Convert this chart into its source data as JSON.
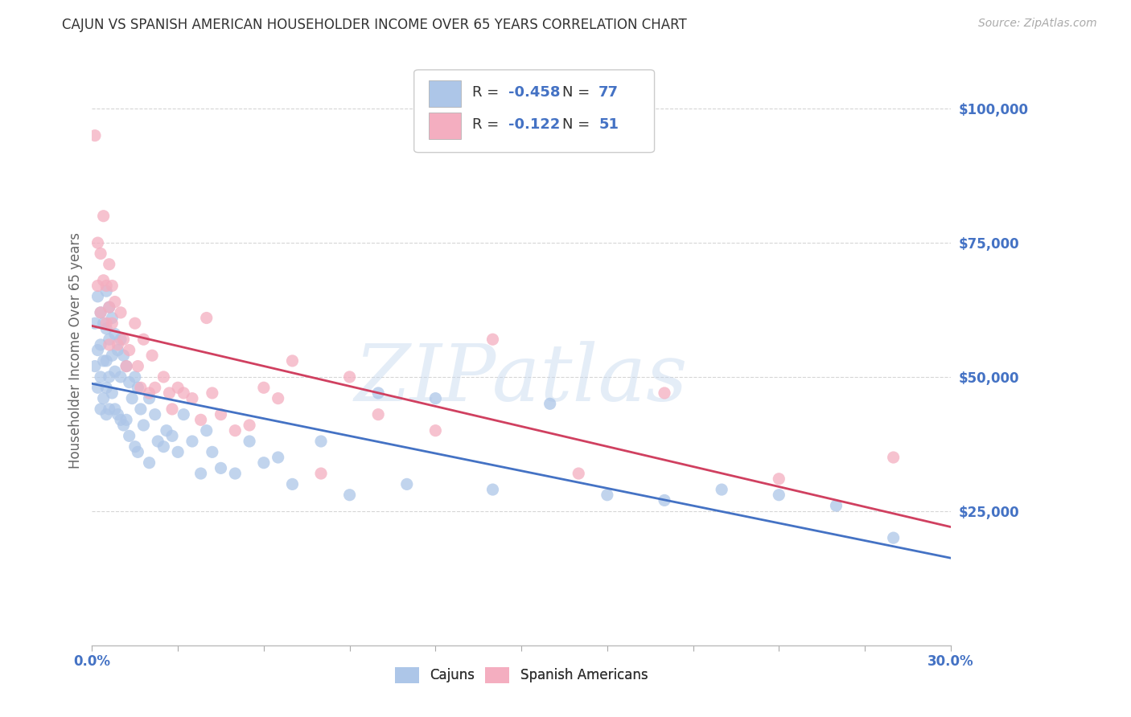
{
  "title": "CAJUN VS SPANISH AMERICAN HOUSEHOLDER INCOME OVER 65 YEARS CORRELATION CHART",
  "source": "Source: ZipAtlas.com",
  "ylabel": "Householder Income Over 65 years",
  "right_ytick_labels": [
    "$25,000",
    "$50,000",
    "$75,000",
    "$100,000"
  ],
  "right_ytick_values": [
    25000,
    50000,
    75000,
    100000
  ],
  "cajun_color": "#adc6e8",
  "cajun_line_color": "#4472c4",
  "spanish_color": "#f4aec0",
  "spanish_line_color": "#d04060",
  "cajun_R": -0.458,
  "cajun_N": 77,
  "spanish_R": -0.122,
  "spanish_N": 51,
  "watermark": "ZIPatlas",
  "background_color": "#ffffff",
  "grid_color": "#cccccc",
  "title_color": "#333333",
  "source_color": "#aaaaaa",
  "legend_label_cajun": "Cajuns",
  "legend_label_spanish": "Spanish Americans",
  "xlim": [
    0.0,
    0.3
  ],
  "ylim": [
    0,
    110000
  ],
  "cajun_x": [
    0.001,
    0.001,
    0.002,
    0.002,
    0.002,
    0.003,
    0.003,
    0.003,
    0.003,
    0.004,
    0.004,
    0.004,
    0.005,
    0.005,
    0.005,
    0.005,
    0.005,
    0.006,
    0.006,
    0.006,
    0.006,
    0.007,
    0.007,
    0.007,
    0.008,
    0.008,
    0.008,
    0.009,
    0.009,
    0.01,
    0.01,
    0.01,
    0.011,
    0.011,
    0.012,
    0.012,
    0.013,
    0.013,
    0.014,
    0.015,
    0.015,
    0.016,
    0.016,
    0.017,
    0.018,
    0.02,
    0.02,
    0.022,
    0.023,
    0.025,
    0.026,
    0.028,
    0.03,
    0.032,
    0.035,
    0.038,
    0.04,
    0.042,
    0.045,
    0.05,
    0.055,
    0.06,
    0.065,
    0.07,
    0.08,
    0.09,
    0.1,
    0.11,
    0.12,
    0.14,
    0.16,
    0.18,
    0.2,
    0.22,
    0.24,
    0.26,
    0.28
  ],
  "cajun_y": [
    60000,
    52000,
    65000,
    55000,
    48000,
    62000,
    56000,
    50000,
    44000,
    60000,
    53000,
    46000,
    66000,
    59000,
    53000,
    48000,
    43000,
    63000,
    57000,
    50000,
    44000,
    61000,
    54000,
    47000,
    58000,
    51000,
    44000,
    55000,
    43000,
    57000,
    50000,
    42000,
    54000,
    41000,
    52000,
    42000,
    49000,
    39000,
    46000,
    50000,
    37000,
    48000,
    36000,
    44000,
    41000,
    46000,
    34000,
    43000,
    38000,
    37000,
    40000,
    39000,
    36000,
    43000,
    38000,
    32000,
    40000,
    36000,
    33000,
    32000,
    38000,
    34000,
    35000,
    30000,
    38000,
    28000,
    47000,
    30000,
    46000,
    29000,
    45000,
    28000,
    27000,
    29000,
    28000,
    26000,
    20000
  ],
  "spanish_x": [
    0.001,
    0.002,
    0.002,
    0.003,
    0.003,
    0.004,
    0.004,
    0.005,
    0.005,
    0.006,
    0.006,
    0.006,
    0.007,
    0.007,
    0.008,
    0.009,
    0.01,
    0.011,
    0.012,
    0.013,
    0.015,
    0.016,
    0.017,
    0.018,
    0.02,
    0.021,
    0.022,
    0.025,
    0.027,
    0.028,
    0.03,
    0.032,
    0.035,
    0.038,
    0.04,
    0.042,
    0.045,
    0.05,
    0.055,
    0.06,
    0.065,
    0.07,
    0.08,
    0.09,
    0.1,
    0.12,
    0.14,
    0.17,
    0.2,
    0.24,
    0.28
  ],
  "spanish_y": [
    95000,
    75000,
    67000,
    73000,
    62000,
    80000,
    68000,
    67000,
    60000,
    71000,
    63000,
    56000,
    67000,
    60000,
    64000,
    56000,
    62000,
    57000,
    52000,
    55000,
    60000,
    52000,
    48000,
    57000,
    47000,
    54000,
    48000,
    50000,
    47000,
    44000,
    48000,
    47000,
    46000,
    42000,
    61000,
    47000,
    43000,
    40000,
    41000,
    48000,
    46000,
    53000,
    32000,
    50000,
    43000,
    40000,
    57000,
    32000,
    47000,
    31000,
    35000
  ]
}
